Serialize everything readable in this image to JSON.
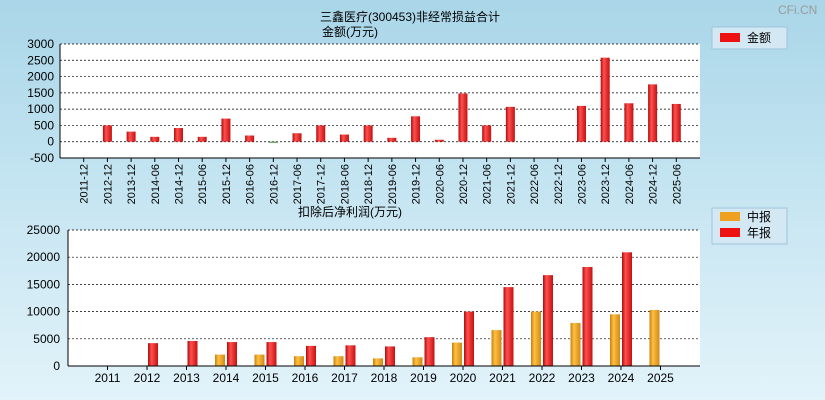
{
  "watermark": "CFi.CN",
  "chart_data": [
    {
      "type": "bar",
      "title": "三鑫医疗(300453)非经常损益合计",
      "subtitle": "金额(万元)",
      "categories": [
        "2011-12",
        "2012-12",
        "2013-12",
        "2014-06",
        "2014-12",
        "2015-06",
        "2015-12",
        "2016-06",
        "2016-12",
        "2017-06",
        "2017-12",
        "2018-06",
        "2018-12",
        "2019-06",
        "2019-12",
        "2020-06",
        "2020-12",
        "2021-06",
        "2021-12",
        "2022-06",
        "2022-12",
        "2023-06",
        "2023-12",
        "2024-06",
        "2024-12",
        "2025-06"
      ],
      "series": [
        {
          "name": "金额",
          "color": "#ee1111",
          "values": [
            0,
            500,
            310,
            150,
            420,
            150,
            710,
            190,
            -30,
            260,
            500,
            220,
            500,
            120,
            780,
            60,
            1480,
            500,
            1070,
            0,
            0,
            1100,
            2580,
            1180,
            1760,
            1160
          ]
        }
      ],
      "ylim": [
        -500,
        3000
      ],
      "yticks": [
        -500,
        0,
        500,
        1000,
        1500,
        2000,
        2500,
        3000
      ],
      "grid": true,
      "legend": "top-right"
    },
    {
      "type": "bar",
      "title": "扣除后净利润(万元)",
      "categories": [
        "2011",
        "2012",
        "2013",
        "2014",
        "2015",
        "2016",
        "2017",
        "2018",
        "2019",
        "2020",
        "2021",
        "2022",
        "2023",
        "2024",
        "2025"
      ],
      "series": [
        {
          "name": "中报",
          "color": "#f0a020",
          "values": [
            null,
            null,
            null,
            2100,
            2100,
            1800,
            1800,
            1400,
            1600,
            4300,
            6600,
            10000,
            7900,
            9500,
            10300
          ]
        },
        {
          "name": "年报",
          "color": "#ee1111",
          "values": [
            null,
            4200,
            4600,
            4400,
            4400,
            3700,
            3800,
            3600,
            5300,
            10000,
            14500,
            16700,
            18200,
            20900,
            null
          ]
        }
      ],
      "ylim": [
        0,
        25000
      ],
      "yticks": [
        0,
        5000,
        10000,
        15000,
        20000,
        25000
      ],
      "grid": true,
      "legend": "top-right"
    }
  ]
}
